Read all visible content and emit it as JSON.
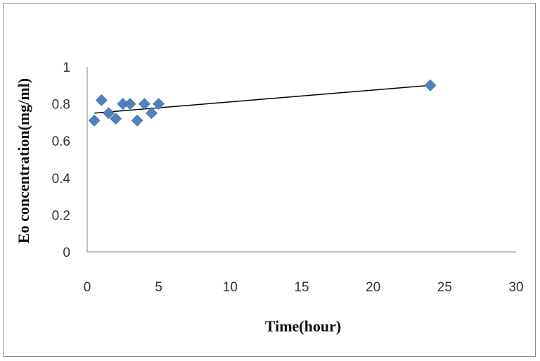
{
  "chart_data": {
    "type": "scatter",
    "title": "",
    "xlabel": "Time(hour)",
    "ylabel": "Eo concentration(mg/ml)",
    "xlim": [
      0,
      30
    ],
    "ylim": [
      0,
      1
    ],
    "xticks": [
      "0",
      "5",
      "10",
      "15",
      "20",
      "25",
      "30"
    ],
    "yticks": [
      "0",
      "0.2",
      "0.4",
      "0.6",
      "0.8",
      "1"
    ],
    "grid": false,
    "legend": "none",
    "marker": "diamond",
    "marker_color": "#4F81BD",
    "trendline_color": "#000000",
    "series": [
      {
        "points": [
          {
            "x": 0.5,
            "y": 0.71
          },
          {
            "x": 1,
            "y": 0.82
          },
          {
            "x": 1.5,
            "y": 0.75
          },
          {
            "x": 2,
            "y": 0.72
          },
          {
            "x": 2.5,
            "y": 0.8
          },
          {
            "x": 3,
            "y": 0.8
          },
          {
            "x": 3.5,
            "y": 0.71
          },
          {
            "x": 4,
            "y": 0.8
          },
          {
            "x": 4.5,
            "y": 0.75
          },
          {
            "x": 5,
            "y": 0.8
          },
          {
            "x": 24,
            "y": 0.9
          }
        ],
        "trendline": {
          "type": "linear",
          "from": {
            "x": 0.5,
            "y": 0.75
          },
          "to": {
            "x": 24,
            "y": 0.9
          }
        }
      }
    ]
  }
}
